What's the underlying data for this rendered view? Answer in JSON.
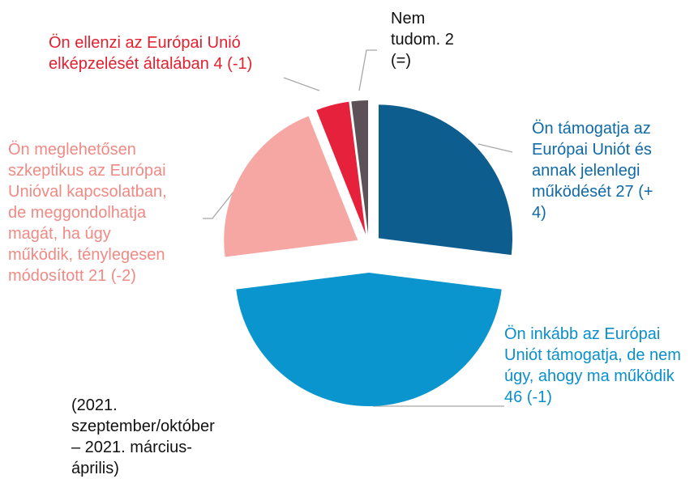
{
  "chart_data": {
    "type": "pie",
    "categories": [
      "Ön támogatja az Európai Uniót és annak jelenlegi működését",
      "Ön inkább az Európai Uniót támogatja, de nem úgy, ahogy ma működik",
      "Ön meglehetősen szkeptikus az Európai Unióval kapcsolatban, de meggondolhatja magát, ha úgy működik, ténylegesen módosított",
      "Ön ellenzi az Európai Unió elképzelését általában",
      "Nem tudom."
    ],
    "values": [
      27,
      46,
      21,
      4,
      2
    ],
    "value_labels": [
      "27 (+ 4)",
      "46 (-1)",
      "21 (-2)",
      "4 (-1)",
      "2 (=)"
    ],
    "colors": [
      "#0d5e8f",
      "#0a95cf",
      "#f6a7a3",
      "#e5213b",
      "#5b5156"
    ],
    "label_colors": [
      "#0f6aa6",
      "#0a8fcc",
      "#f08a84",
      "#e2202f",
      "#111111"
    ],
    "note": "(2021. szeptember/október – 2021. március-április)"
  }
}
